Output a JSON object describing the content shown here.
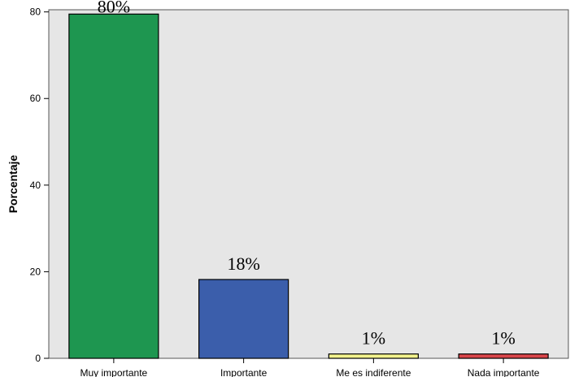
{
  "chart_data": {
    "type": "bar",
    "categories": [
      "Muy importante",
      "Importante",
      "Me es indiferente",
      "Nada importante"
    ],
    "values": [
      79.5,
      18.2,
      1.0,
      1.0
    ],
    "data_labels": [
      "80%",
      "18%",
      "1%",
      "1%"
    ],
    "colors": [
      "#1e9650",
      "#3b5eab",
      "#f2f28c",
      "#d9454a"
    ],
    "title": "",
    "xlabel": "",
    "ylabel": "Porcentaje",
    "ylim": [
      0,
      80.5
    ],
    "yticks": [
      0,
      20,
      40,
      60,
      80
    ],
    "grid": false,
    "plot_background": "#e6e6e6"
  }
}
